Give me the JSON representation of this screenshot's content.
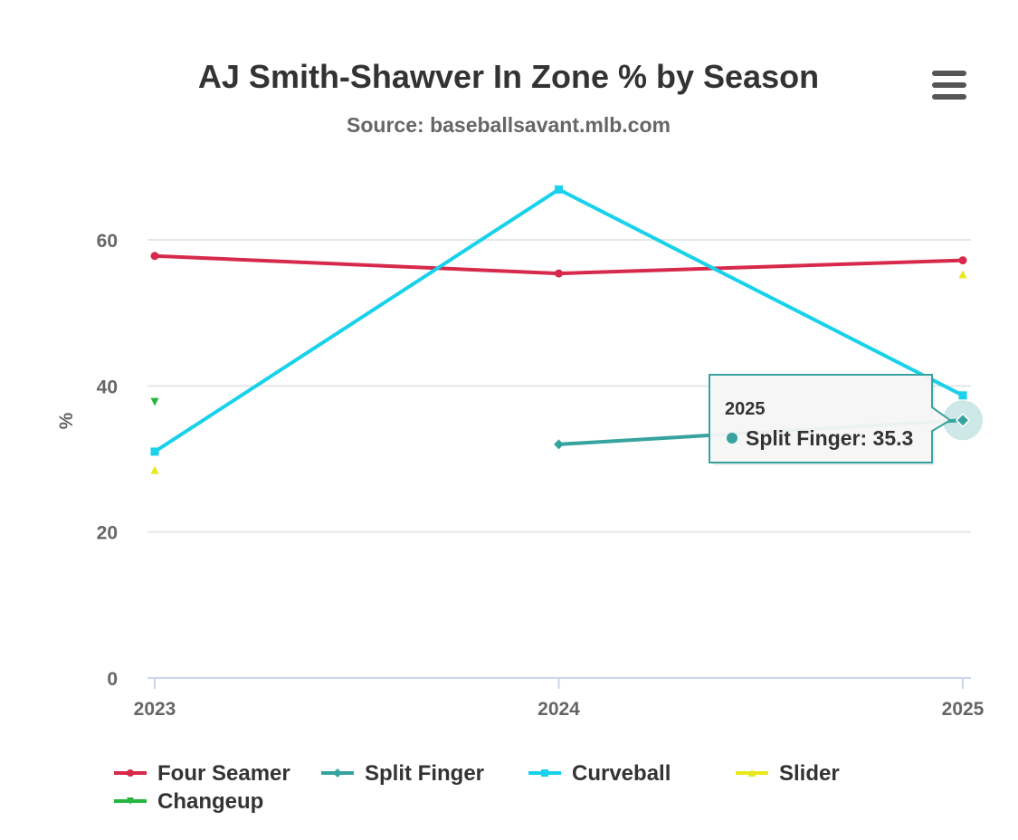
{
  "chart_data": {
    "type": "line",
    "title": "AJ Smith-Shawver In Zone % by Season",
    "subtitle": "Source: baseballsavant.mlb.com",
    "xlabel": "",
    "ylabel": "%",
    "categories": [
      "2023",
      "2024",
      "2025"
    ],
    "ylim": [
      0,
      70
    ],
    "yticks": [
      0,
      20,
      40,
      60
    ],
    "grid": true,
    "legend_position": "bottom",
    "series": [
      {
        "name": "Four Seamer",
        "color": "#d6294b",
        "marker": "circle",
        "values": [
          57.8,
          55.4,
          57.2
        ]
      },
      {
        "name": "Split Finger",
        "color": "#36a39e",
        "marker": "diamond",
        "values": [
          null,
          32.0,
          35.3
        ]
      },
      {
        "name": "Curveball",
        "color": "#18d1ea",
        "marker": "square",
        "values": [
          31.0,
          66.9,
          38.7
        ]
      },
      {
        "name": "Slider",
        "color": "#e8e81a",
        "marker": "triangle",
        "values": [
          28.5,
          null,
          55.3
        ]
      },
      {
        "name": "Changeup",
        "color": "#27b53f",
        "marker": "triangle-down",
        "values": [
          37.8,
          null,
          null
        ]
      }
    ],
    "tooltip": {
      "category": "2025",
      "series": "Split Finger",
      "label": "Split Finger: 35.3",
      "value": 35.3
    }
  },
  "menu": {
    "icon": "hamburger-menu-icon"
  }
}
